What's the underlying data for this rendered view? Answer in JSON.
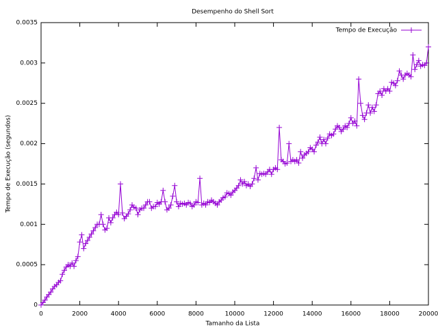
{
  "chart_data": {
    "type": "line",
    "title": "Desempenho do Shell Sort",
    "x_label": "Tamanho da Lista",
    "y_label": "Tempo de Execução (segundos)",
    "x": [
      0,
      100,
      200,
      300,
      400,
      500,
      600,
      700,
      800,
      900,
      1000,
      1100,
      1200,
      1300,
      1400,
      1500,
      1600,
      1700,
      1800,
      1900,
      2000,
      2100,
      2200,
      2300,
      2400,
      2500,
      2600,
      2700,
      2800,
      2900,
      3000,
      3100,
      3200,
      3300,
      3400,
      3500,
      3600,
      3700,
      3800,
      3900,
      4000,
      4100,
      4200,
      4300,
      4400,
      4500,
      4600,
      4700,
      4800,
      4900,
      5000,
      5100,
      5200,
      5300,
      5400,
      5500,
      5600,
      5700,
      5800,
      5900,
      6000,
      6100,
      6200,
      6300,
      6400,
      6500,
      6600,
      6700,
      6800,
      6900,
      7000,
      7100,
      7200,
      7300,
      7400,
      7500,
      7600,
      7700,
      7800,
      7900,
      8000,
      8100,
      8200,
      8300,
      8400,
      8500,
      8600,
      8700,
      8800,
      8900,
      9000,
      9100,
      9200,
      9300,
      9400,
      9500,
      9600,
      9700,
      9800,
      9900,
      10000,
      10100,
      10200,
      10300,
      10400,
      10500,
      10600,
      10700,
      10800,
      10900,
      11000,
      11100,
      11200,
      11300,
      11400,
      11500,
      11600,
      11700,
      11800,
      11900,
      12000,
      12100,
      12200,
      12300,
      12400,
      12500,
      12600,
      12700,
      12800,
      12900,
      13000,
      13100,
      13200,
      13300,
      13400,
      13500,
      13600,
      13700,
      13800,
      13900,
      14000,
      14100,
      14200,
      14300,
      14400,
      14500,
      14600,
      14700,
      14800,
      14900,
      15000,
      15100,
      15200,
      15300,
      15400,
      15500,
      15600,
      15700,
      15800,
      15900,
      16000,
      16100,
      16200,
      16300,
      16400,
      16500,
      16600,
      16700,
      16800,
      16900,
      17000,
      17100,
      17200,
      17300,
      17400,
      17500,
      17600,
      17700,
      17800,
      17900,
      18000,
      18100,
      18200,
      18300,
      18400,
      18500,
      18600,
      18700,
      18800,
      18900,
      19000,
      19100,
      19200,
      19300,
      19400,
      19500,
      19600,
      19700,
      19800,
      19900,
      20000
    ],
    "series": [
      {
        "name": "Tempo de Execução",
        "color": "#9400d3",
        "values": [
          0,
          3e-05,
          6e-05,
          0.0001,
          0.00013,
          0.00016,
          0.0002,
          0.00023,
          0.00025,
          0.00028,
          0.0003,
          0.00038,
          0.00043,
          0.00047,
          0.0005,
          0.00048,
          0.00052,
          0.00048,
          0.00055,
          0.0006,
          0.00078,
          0.00087,
          0.0007,
          0.00076,
          0.0008,
          0.00084,
          0.00088,
          0.00092,
          0.00096,
          0.001,
          0.001,
          0.00112,
          0.001,
          0.00093,
          0.00095,
          0.00108,
          0.00102,
          0.00108,
          0.00112,
          0.00115,
          0.00112,
          0.0015,
          0.00114,
          0.00107,
          0.0011,
          0.00113,
          0.00118,
          0.00124,
          0.00121,
          0.0012,
          0.00112,
          0.00118,
          0.0012,
          0.0012,
          0.00124,
          0.00128,
          0.00128,
          0.0012,
          0.00122,
          0.00122,
          0.00127,
          0.00125,
          0.00128,
          0.00142,
          0.00128,
          0.00118,
          0.0012,
          0.00124,
          0.00135,
          0.00148,
          0.00128,
          0.00122,
          0.00126,
          0.00125,
          0.00126,
          0.00124,
          0.00127,
          0.00126,
          0.00122,
          0.00124,
          0.00128,
          0.00127,
          0.00157,
          0.00124,
          0.00126,
          0.00124,
          0.00128,
          0.00127,
          0.0013,
          0.00128,
          0.00126,
          0.00124,
          0.00128,
          0.0013,
          0.00133,
          0.00134,
          0.00139,
          0.00138,
          0.00136,
          0.0014,
          0.00142,
          0.00145,
          0.00148,
          0.00155,
          0.0015,
          0.00153,
          0.00148,
          0.0015,
          0.00147,
          0.0015,
          0.00157,
          0.0017,
          0.00155,
          0.00163,
          0.00162,
          0.00163,
          0.00162,
          0.00165,
          0.00168,
          0.00162,
          0.00168,
          0.0017,
          0.00168,
          0.0022,
          0.0018,
          0.00178,
          0.00175,
          0.00176,
          0.002,
          0.00178,
          0.0018,
          0.00178,
          0.0018,
          0.00176,
          0.0019,
          0.00182,
          0.00186,
          0.00188,
          0.0019,
          0.00195,
          0.00193,
          0.0019,
          0.00198,
          0.00202,
          0.00208,
          0.002,
          0.00205,
          0.002,
          0.00207,
          0.00212,
          0.0021,
          0.00212,
          0.00218,
          0.00222,
          0.0022,
          0.00215,
          0.00218,
          0.00222,
          0.0022,
          0.00225,
          0.00232,
          0.00225,
          0.00228,
          0.00222,
          0.0028,
          0.0025,
          0.00235,
          0.0023,
          0.00238,
          0.00248,
          0.00238,
          0.00245,
          0.0024,
          0.00248,
          0.00262,
          0.00265,
          0.0026,
          0.00268,
          0.00265,
          0.00268,
          0.00265,
          0.00276,
          0.00275,
          0.00272,
          0.00278,
          0.0029,
          0.00285,
          0.0028,
          0.00285,
          0.00287,
          0.00285,
          0.00283,
          0.0031,
          0.00292,
          0.00298,
          0.00303,
          0.00296,
          0.00298,
          0.00297,
          0.003,
          0.0032
        ]
      }
    ],
    "xlim": [
      0,
      20000
    ],
    "xticks": [
      0,
      2000,
      4000,
      6000,
      8000,
      10000,
      12000,
      14000,
      16000,
      18000,
      20000
    ],
    "ylim": [
      0,
      0.0035
    ],
    "yticks": [
      0,
      0.0005,
      0.001,
      0.0015,
      0.002,
      0.0025,
      0.003,
      0.0035
    ],
    "legend": "top-right"
  }
}
